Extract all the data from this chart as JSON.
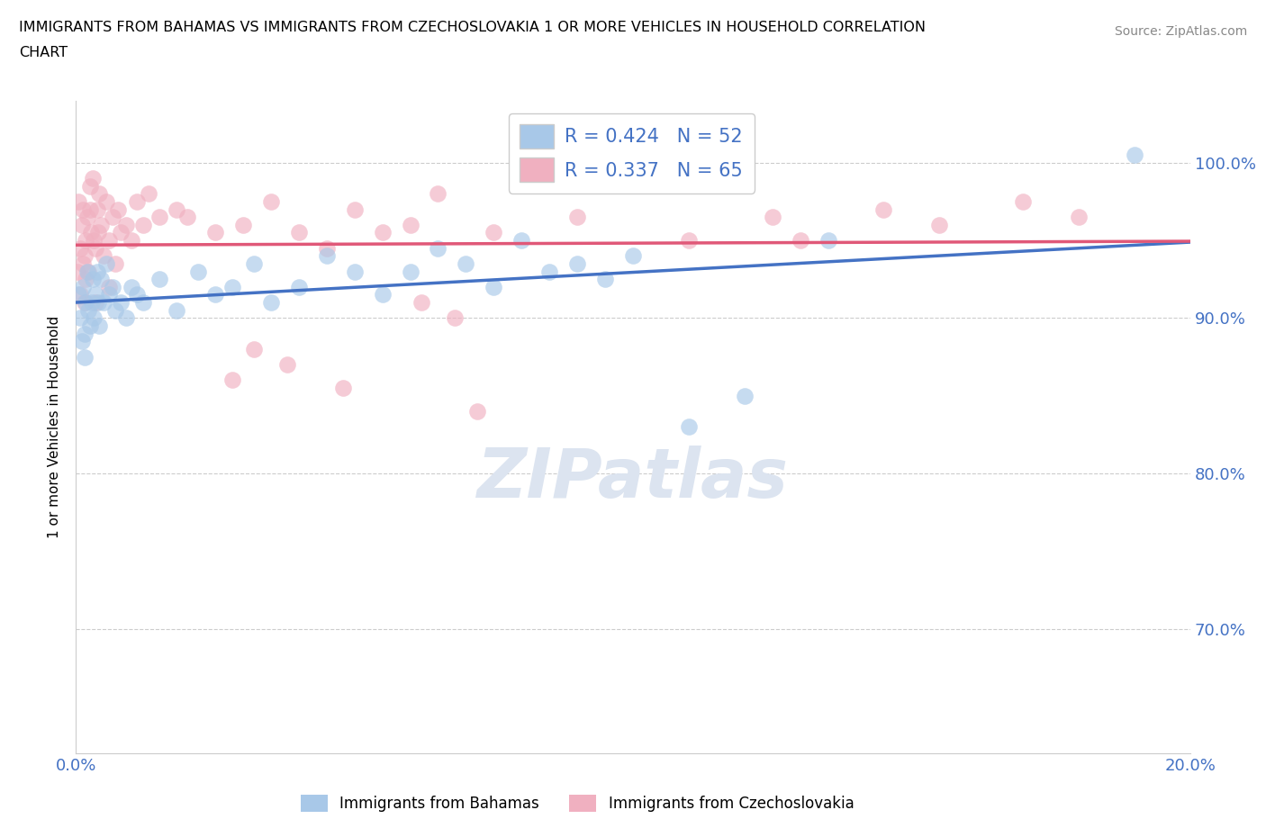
{
  "title_line1": "IMMIGRANTS FROM BAHAMAS VS IMMIGRANTS FROM CZECHOSLOVAKIA 1 OR MORE VEHICLES IN HOUSEHOLD CORRELATION",
  "title_line2": "CHART",
  "source": "Source: ZipAtlas.com",
  "ylabel": "1 or more Vehicles in Household",
  "xlim": [
    0.0,
    20.0
  ],
  "ylim": [
    62.0,
    104.0
  ],
  "xticks": [
    0.0,
    2.5,
    5.0,
    7.5,
    10.0,
    12.5,
    15.0,
    17.5,
    20.0
  ],
  "yticks": [
    70.0,
    80.0,
    90.0,
    100.0
  ],
  "ytick_labels": [
    "70.0%",
    "80.0%",
    "90.0%",
    "100.0%"
  ],
  "xtick_labels_shown": [
    "0.0%",
    "20.0%"
  ],
  "xtick_shown_pos": [
    0.0,
    20.0
  ],
  "R_bahamas": 0.424,
  "N_bahamas": 52,
  "R_czech": 0.337,
  "N_czech": 65,
  "color_bahamas": "#a8c8e8",
  "color_czech": "#f0b0c0",
  "trendline_color_bahamas": "#4472c4",
  "trendline_color_czech": "#e05878",
  "watermark_color": "#dce4f0",
  "bahamas_x": [
    0.05,
    0.08,
    0.1,
    0.12,
    0.15,
    0.15,
    0.18,
    0.2,
    0.22,
    0.25,
    0.28,
    0.3,
    0.32,
    0.35,
    0.38,
    0.4,
    0.42,
    0.45,
    0.5,
    0.55,
    0.6,
    0.65,
    0.7,
    0.8,
    0.9,
    1.0,
    1.1,
    1.2,
    1.5,
    1.8,
    2.2,
    2.5,
    2.8,
    3.2,
    3.5,
    4.0,
    4.5,
    5.0,
    5.5,
    6.0,
    6.5,
    7.0,
    7.5,
    8.0,
    8.5,
    9.0,
    9.5,
    10.0,
    11.0,
    12.0,
    13.5,
    19.0
  ],
  "bahamas_y": [
    91.5,
    90.0,
    88.5,
    92.0,
    89.0,
    87.5,
    91.0,
    93.0,
    90.5,
    89.5,
    91.0,
    92.5,
    90.0,
    91.5,
    93.0,
    91.0,
    89.5,
    92.5,
    91.0,
    93.5,
    91.5,
    92.0,
    90.5,
    91.0,
    90.0,
    92.0,
    91.5,
    91.0,
    92.5,
    90.5,
    93.0,
    91.5,
    92.0,
    93.5,
    91.0,
    92.0,
    94.0,
    93.0,
    91.5,
    93.0,
    94.5,
    93.5,
    92.0,
    95.0,
    93.0,
    93.5,
    92.5,
    94.0,
    83.0,
    85.0,
    95.0,
    100.5
  ],
  "czech_x": [
    0.03,
    0.05,
    0.07,
    0.08,
    0.1,
    0.12,
    0.13,
    0.15,
    0.15,
    0.17,
    0.18,
    0.2,
    0.22,
    0.25,
    0.25,
    0.27,
    0.3,
    0.32,
    0.35,
    0.38,
    0.4,
    0.42,
    0.45,
    0.5,
    0.55,
    0.6,
    0.65,
    0.7,
    0.75,
    0.8,
    0.9,
    1.0,
    1.1,
    1.2,
    1.3,
    1.5,
    1.8,
    2.0,
    2.5,
    3.0,
    3.5,
    4.0,
    4.5,
    5.0,
    5.5,
    6.0,
    6.5,
    7.5,
    9.0,
    11.0,
    12.5,
    13.0,
    14.5,
    15.5,
    17.0,
    18.0,
    3.8,
    4.8,
    6.2,
    7.2,
    3.2,
    2.8,
    6.8,
    0.35,
    0.6
  ],
  "czech_y": [
    93.0,
    97.5,
    94.5,
    91.5,
    96.0,
    93.5,
    97.0,
    94.0,
    91.0,
    95.0,
    92.5,
    96.5,
    93.0,
    98.5,
    97.0,
    95.5,
    99.0,
    95.0,
    94.5,
    97.0,
    95.5,
    98.0,
    96.0,
    94.0,
    97.5,
    95.0,
    96.5,
    93.5,
    97.0,
    95.5,
    96.0,
    95.0,
    97.5,
    96.0,
    98.0,
    96.5,
    97.0,
    96.5,
    95.5,
    96.0,
    97.5,
    95.5,
    94.5,
    97.0,
    95.5,
    96.0,
    98.0,
    95.5,
    96.5,
    95.0,
    96.5,
    95.0,
    97.0,
    96.0,
    97.5,
    96.5,
    87.0,
    85.5,
    91.0,
    84.0,
    88.0,
    86.0,
    90.0,
    91.0,
    92.0
  ]
}
